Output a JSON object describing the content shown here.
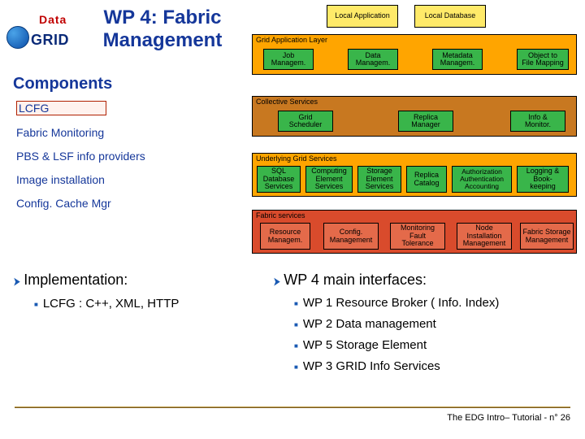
{
  "logo": {
    "top": "Data",
    "text": "GRID"
  },
  "title": "WP 4: Fabric Management",
  "components_heading": "Components",
  "components": {
    "lcfg": "LCFG",
    "fabric": "Fabric Monitoring",
    "pbs": "PBS & LSF info providers",
    "image": "Image installation",
    "cache": "Config. Cache Mgr"
  },
  "top_boxes": {
    "local_app": "Local Application",
    "local_db": "Local Database"
  },
  "layers": {
    "grid_app": "Grid Application Layer",
    "collective": "Collective Services",
    "underlying": "Underlying Grid Services",
    "fabric": "Fabric services"
  },
  "row1": {
    "job": "Job\nManagem.",
    "data": "Data\nManagem.",
    "meta": "Metadata\nManagem.",
    "obj": "Object to\nFile Mapping"
  },
  "row2": {
    "sched": "Grid\nScheduler",
    "replica": "Replica\nManager",
    "info": "Info &\nMonitor."
  },
  "row3": {
    "sql": "SQL\nDatabase\nServices",
    "comp": "Computing\nElement\nServices",
    "store": "Storage\nElement\nServices",
    "repcat": "Replica\nCatalog",
    "auth": "Authorization\nAuthentication\nAccounting",
    "log": "Logging &\nBook-\nkeeping"
  },
  "row4": {
    "res": "Resource\nManagem.",
    "conf": "Config.\nManagement",
    "mon": "Monitoring\nFault\nTolerance",
    "node": "Node\nInstallation\nManagement",
    "fab": "Fabric Storage\nManagement"
  },
  "impl_heading": "Implementation:",
  "impl_item": "LCFG  :  C++, XML, HTTP",
  "main_heading": "WP 4 main interfaces:",
  "main_items": {
    "a": "WP 1 Resource Broker ( Info. Index)",
    "b": "WP 2 Data management",
    "c": "WP 5 Storage Element",
    "d": "WP 3 GRID Info Services"
  },
  "footer": "The EDG Intro– Tutorial - n° 26"
}
